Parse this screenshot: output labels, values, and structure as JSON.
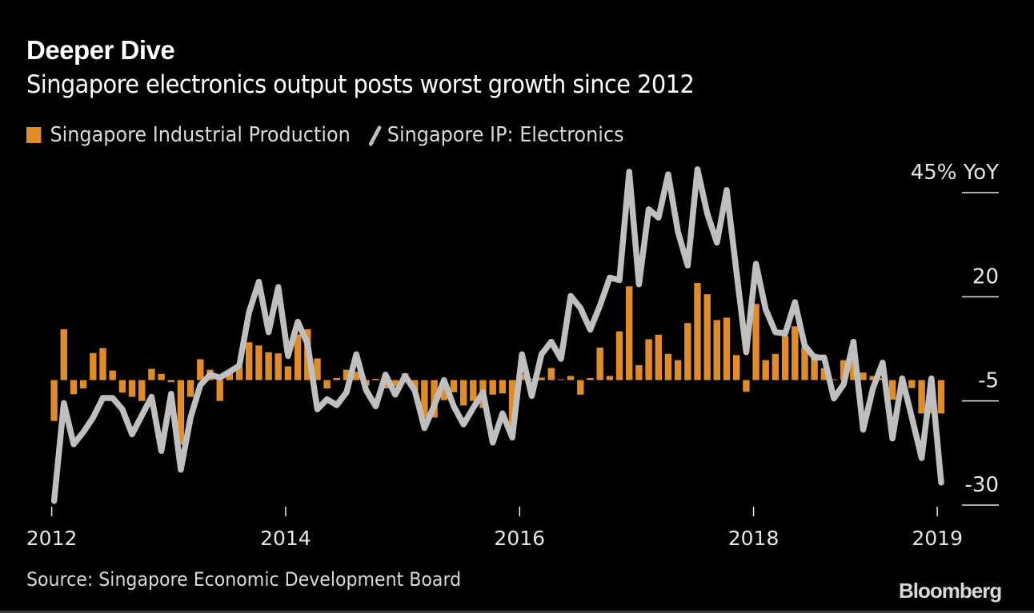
{
  "header": {
    "title": "Deeper Dive",
    "subtitle": "Singapore electronics output posts worst growth since 2012"
  },
  "legend": [
    {
      "label": "Singapore Industrial Production",
      "type": "bar",
      "color": "#e08c28"
    },
    {
      "label": "Singapore IP: Electronics",
      "type": "line",
      "color": "#bfbfbf"
    }
  ],
  "footer": {
    "source": "Source: Singapore Economic Development Board",
    "brand": "Bloomberg"
  },
  "chart_data": {
    "type": "bar+line",
    "title": "Singapore electronics output posts worst growth since 2012",
    "xlabel": "",
    "ylabel": "% YoY",
    "y_unit_label": "45% YoY",
    "ylim": [
      -30,
      45
    ],
    "yticks": [
      45,
      20,
      -5,
      -30
    ],
    "ytick_labels": [
      "45% YoY",
      "20",
      "-5",
      "-30"
    ],
    "x_start": "2012-01",
    "x_end": "2019-08",
    "frequency": "monthly",
    "xticks": [
      {
        "label": "2012",
        "month_index": 0
      },
      {
        "label": "2014",
        "month_index": 24
      },
      {
        "label": "2016",
        "month_index": 48
      },
      {
        "label": "2018",
        "month_index": 72
      },
      {
        "label": "2019",
        "month_index": 91
      }
    ],
    "grid": false,
    "legend_position": "top-left",
    "series": [
      {
        "name": "Singapore Industrial Production",
        "type": "bar",
        "color": "#e08c28",
        "values": [
          -9.8,
          12.2,
          -3.4,
          -2,
          6.5,
          7.7,
          2.3,
          -3,
          -4,
          -5,
          2.7,
          1.5,
          -0.5,
          -15.5,
          -4,
          5,
          2.5,
          -5,
          2.2,
          3.2,
          9.1,
          8.3,
          6.7,
          6.4,
          3.3,
          11,
          12.2,
          5.2,
          -2,
          0.5,
          2.5,
          2,
          -1.3,
          0.3,
          -2,
          -1.5,
          1.6,
          -2.5,
          -9,
          -9,
          -4.8,
          -2.9,
          -6.1,
          -5,
          -6.7,
          -3.5,
          -3.2,
          -10.6,
          1.3,
          0.3,
          0.6,
          2.9,
          0.2,
          1,
          -3.5,
          0.5,
          7.8,
          1,
          11.7,
          22.5,
          3.6,
          9.8,
          10.9,
          6.3,
          4.8,
          13.7,
          23.3,
          20.6,
          14.4,
          15,
          6,
          -2.8,
          18.3,
          4.8,
          6.3,
          10.6,
          12.9,
          8,
          6.3,
          2.9,
          0.2,
          4.8,
          4.8,
          1.8,
          1,
          0.5,
          -4.7,
          -0.3,
          -1.9,
          -8,
          -8,
          -8
        ]
      },
      {
        "name": "Singapore IP: Electronics",
        "type": "line",
        "color": "#bfbfbf",
        "values": [
          -29,
          -5.5,
          -15.4,
          -12.5,
          -9,
          -4.3,
          -4.3,
          -7,
          -13,
          -8.5,
          -4,
          -17,
          -3.3,
          -21.5,
          -9,
          -1.2,
          1.3,
          0.6,
          2,
          3.5,
          16.3,
          23.6,
          11.5,
          22.3,
          5.8,
          14,
          8.7,
          -7,
          -4.6,
          -6,
          -2.9,
          6.2,
          -2.4,
          -6.3,
          1.3,
          -3.5,
          1,
          -2.5,
          -11.5,
          -6.1,
          0,
          -6.3,
          -10.6,
          -6.7,
          -2.9,
          -15,
          -8,
          -13.8,
          6.2,
          -3.8,
          6.2,
          9.2,
          5.1,
          20.2,
          17.3,
          12.1,
          17.9,
          24.6,
          24,
          50,
          23,
          41,
          39,
          49.4,
          35.6,
          27.5,
          50.6,
          40,
          33,
          45.6,
          26,
          6.7,
          27.9,
          17,
          11.5,
          11.2,
          18.7,
          8.3,
          5.4,
          5.4,
          -4.4,
          -1,
          9.2,
          -11.9,
          -2,
          4.2,
          -14,
          0.4,
          -9,
          -18.7,
          0.4,
          -24.6
        ]
      }
    ]
  }
}
